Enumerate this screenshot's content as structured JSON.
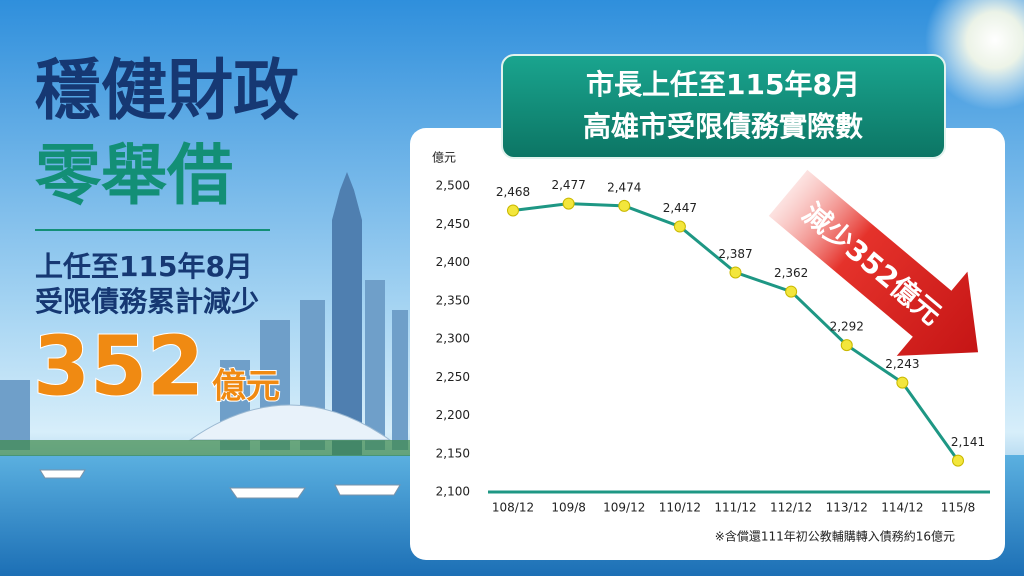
{
  "left_panel": {
    "headline": "穩健財政",
    "subheadline": "零舉借",
    "line1": "上任至115年8月",
    "line2": "受限債務累計減少",
    "amount": "352",
    "amount_unit": "億元"
  },
  "chart_data": {
    "type": "line",
    "title": [
      "市長上任至115年8月",
      "高雄市受限債務實際數"
    ],
    "y_label": "億元",
    "categories": [
      "108/12",
      "109/8",
      "109/12",
      "110/12",
      "111/12",
      "112/12",
      "113/12",
      "114/12",
      "115/8"
    ],
    "values": [
      2468,
      2477,
      2474,
      2447,
      2387,
      2362,
      2292,
      2243,
      2141
    ],
    "value_labels": [
      "2,468",
      "2,477",
      "2,474",
      "2,447",
      "2,387",
      "2,362",
      "2,292",
      "2,243",
      "2,141"
    ],
    "color": "#1e9784",
    "marker_color": "#f3e63c",
    "ylim": [
      2100,
      2500
    ],
    "yticks": [
      {
        "value": 2100,
        "label": "2,100"
      },
      {
        "value": 2150,
        "label": "2,150"
      },
      {
        "value": 2200,
        "label": "2,200"
      },
      {
        "value": 2250,
        "label": "2,250"
      },
      {
        "value": 2300,
        "label": "2,300"
      },
      {
        "value": 2350,
        "label": "2,350"
      },
      {
        "value": 2400,
        "label": "2,400"
      },
      {
        "value": 2450,
        "label": "2,450"
      },
      {
        "value": 2500,
        "label": "2,500"
      }
    ],
    "grid": false,
    "annotation": "減少352億元",
    "footnote": "※含償還111年初公教輔購轉入債務約16億元"
  }
}
